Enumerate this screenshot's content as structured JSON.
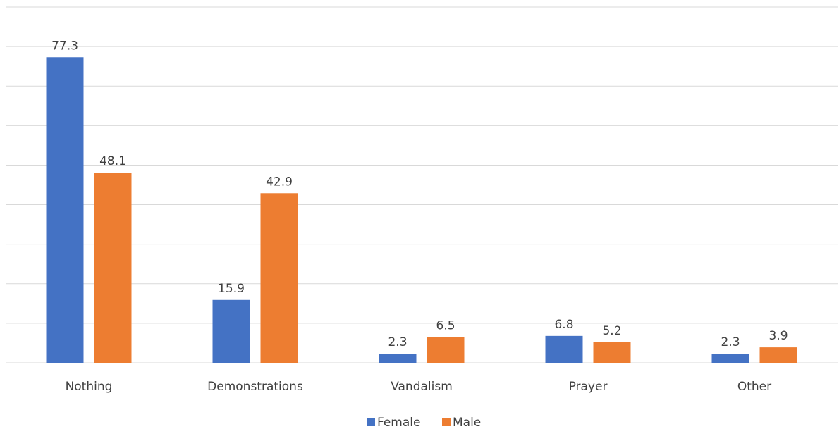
{
  "chart_data": {
    "type": "bar",
    "categories": [
      "Nothing",
      "Demonstrations",
      "Vandalism",
      "Prayer",
      "Other"
    ],
    "series": [
      {
        "name": "Female",
        "color": "#4472c4",
        "values": [
          77.3,
          15.9,
          2.3,
          6.8,
          2.3
        ]
      },
      {
        "name": "Male",
        "color": "#ed7d31",
        "values": [
          48.1,
          42.9,
          6.5,
          5.2,
          3.9
        ]
      }
    ],
    "ylim": [
      0,
      90
    ],
    "yticks": [
      0,
      10,
      20,
      30,
      40,
      50,
      60,
      70,
      80,
      90
    ],
    "ytick_labels": false,
    "grid": true,
    "legend": "bottom",
    "data_labels": true
  }
}
